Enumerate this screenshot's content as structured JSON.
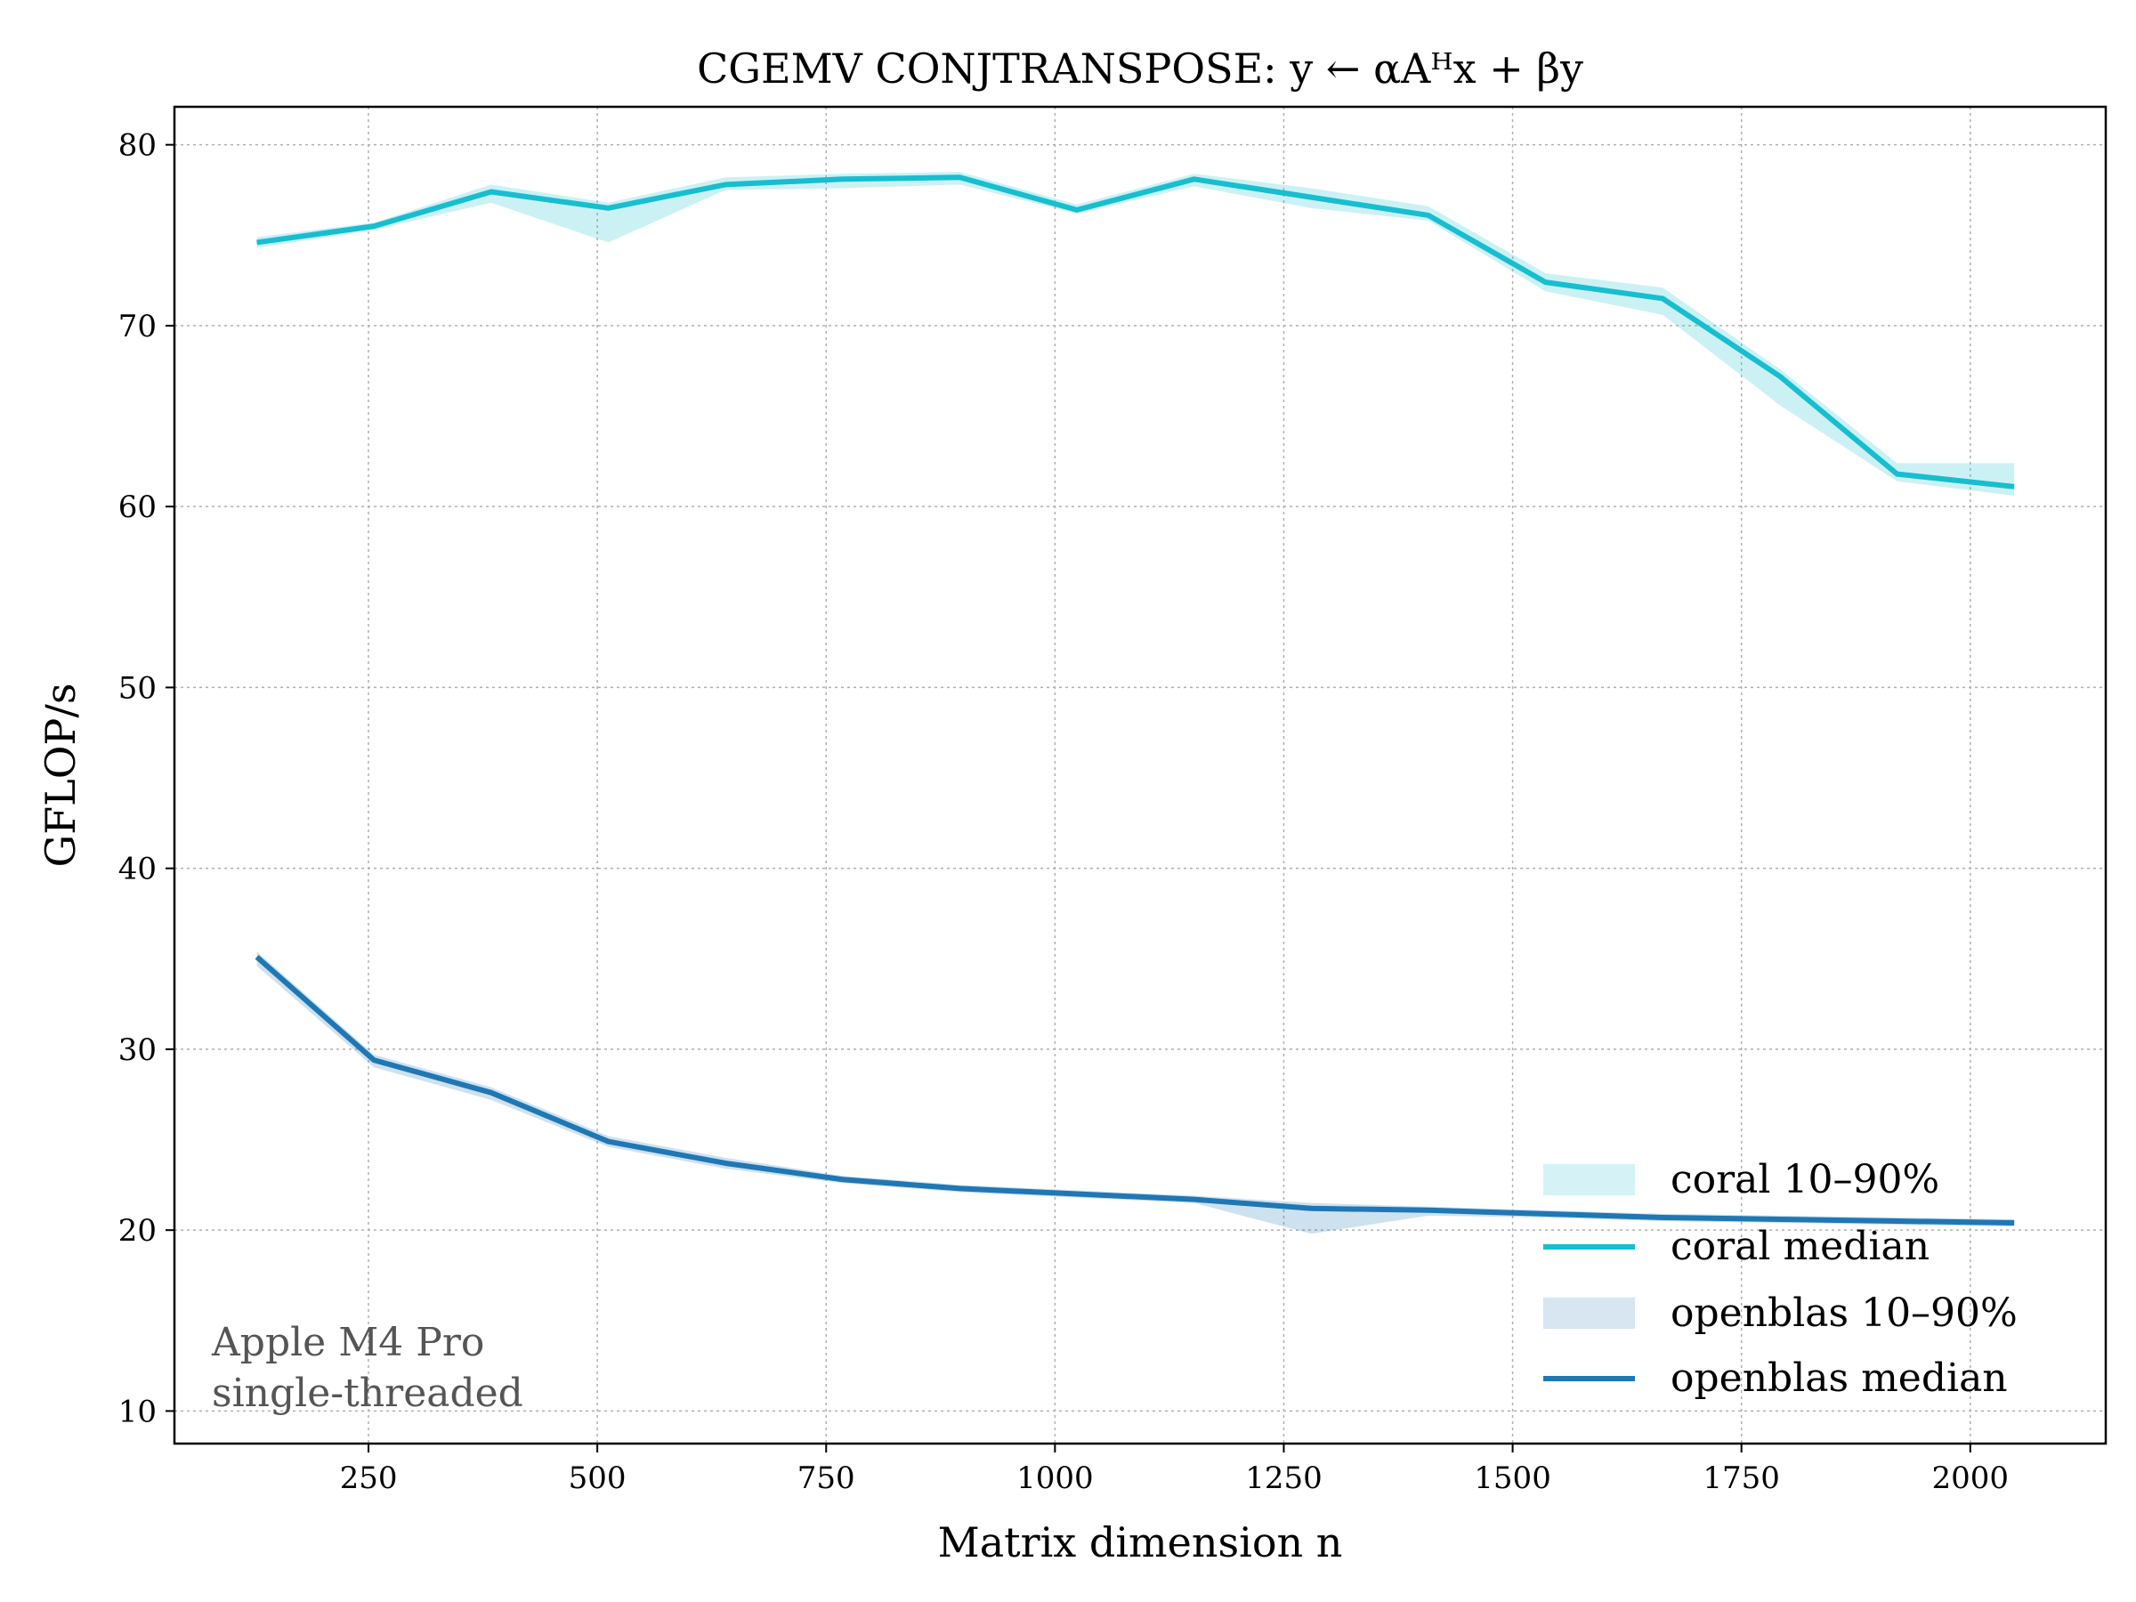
{
  "chart_data": {
    "type": "line",
    "title": "CGEMV CONJTRANSPOSE: y ← αAᴴx + βy",
    "xlabel": "Matrix dimension n",
    "ylabel": "GFLOP/s",
    "xlim": [
      38,
      2148
    ],
    "ylim": [
      8.2,
      82.1
    ],
    "xticks": [
      250,
      500,
      750,
      1000,
      1250,
      1500,
      1750,
      2000
    ],
    "yticks": [
      10,
      20,
      30,
      40,
      50,
      60,
      70,
      80
    ],
    "grid": true,
    "legend_position": "lower-right",
    "annotation": [
      "Apple M4 Pro",
      "single-threaded"
    ],
    "x": [
      128,
      256,
      384,
      512,
      640,
      768,
      896,
      1024,
      1152,
      1280,
      1408,
      1536,
      1664,
      1792,
      1920,
      2048
    ],
    "series": [
      {
        "name": "coral median",
        "color": "#17becf",
        "values": [
          74.6,
          75.5,
          77.4,
          76.5,
          77.8,
          78.1,
          78.2,
          76.4,
          78.1,
          77.1,
          76.1,
          72.4,
          71.5,
          67.2,
          61.8,
          61.1
        ]
      },
      {
        "name": "coral 10–90%",
        "color": "#17becf",
        "band": true,
        "low": [
          74.3,
          75.3,
          76.8,
          74.6,
          77.5,
          77.6,
          77.8,
          76.2,
          77.7,
          76.5,
          75.8,
          71.9,
          70.6,
          65.6,
          61.4,
          60.6
        ],
        "high": [
          74.9,
          75.7,
          77.8,
          76.8,
          78.2,
          78.4,
          78.5,
          76.7,
          78.4,
          77.6,
          76.6,
          72.9,
          72.1,
          67.6,
          62.4,
          62.4
        ]
      },
      {
        "name": "openblas median",
        "color": "#1f77b4",
        "values": [
          35.1,
          29.4,
          27.6,
          24.9,
          23.7,
          22.8,
          22.3,
          22.0,
          21.7,
          21.2,
          21.1,
          20.9,
          20.7,
          20.6,
          20.5,
          20.4
        ]
      },
      {
        "name": "openblas 10–90%",
        "color": "#1f77b4",
        "band": true,
        "low": [
          34.6,
          29.0,
          27.2,
          24.6,
          23.4,
          22.6,
          22.1,
          21.8,
          21.5,
          19.8,
          20.8,
          20.7,
          20.5,
          20.4,
          20.3,
          20.2
        ],
        "high": [
          35.4,
          29.7,
          27.9,
          25.2,
          24.0,
          23.0,
          22.5,
          22.2,
          21.9,
          21.5,
          21.3,
          21.1,
          20.9,
          20.8,
          20.7,
          20.6
        ]
      }
    ],
    "legend": [
      "coral 10–90%",
      "coral median",
      "openblas 10–90%",
      "openblas median"
    ]
  }
}
